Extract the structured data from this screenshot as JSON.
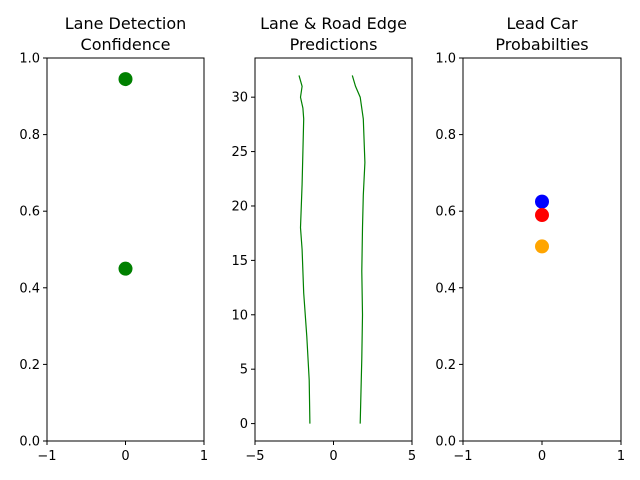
{
  "chart_data": [
    {
      "type": "scatter",
      "title": [
        "Lane Detection",
        "Confidence"
      ],
      "xlim": [
        -1,
        1
      ],
      "ylim": [
        0,
        1
      ],
      "xticks": [
        "−1",
        "0",
        "1"
      ],
      "yticks": [
        "0.0",
        "0.2",
        "0.4",
        "0.6",
        "0.8",
        "1.0"
      ],
      "points": [
        {
          "x": 0,
          "y": 0.945,
          "color": "#008000"
        },
        {
          "x": 0,
          "y": 0.45,
          "color": "#008000"
        }
      ]
    },
    {
      "type": "line",
      "title": [
        "Lane & Road Edge",
        "Predictions"
      ],
      "xlim": [
        -5,
        5
      ],
      "ylim": [
        -1.6,
        33.6
      ],
      "xticks": [
        "−5",
        "0",
        "5"
      ],
      "yticks": [
        "0",
        "5",
        "10",
        "15",
        "20",
        "25",
        "30"
      ],
      "series": [
        {
          "color": "#008000",
          "x": [
            -1.5,
            -1.55,
            -1.7,
            -1.9,
            -2.0,
            -2.1,
            -2.05,
            -2.0,
            -1.95,
            -1.9,
            -1.95,
            -2.1,
            -2.0,
            -2.2
          ],
          "y": [
            0,
            4,
            8,
            12,
            16,
            18,
            20,
            22,
            25,
            28,
            29,
            30,
            31,
            32
          ]
        },
        {
          "color": "#008000",
          "x": [
            1.7,
            1.75,
            1.8,
            1.85,
            1.8,
            1.85,
            1.9,
            2.0,
            1.9,
            1.7,
            1.4,
            1.2
          ],
          "y": [
            0,
            3,
            6,
            10,
            14,
            18,
            21,
            24,
            28,
            30,
            31,
            32
          ]
        }
      ]
    },
    {
      "type": "scatter",
      "title": [
        "Lead Car",
        "Probabilties"
      ],
      "xlim": [
        -1,
        1
      ],
      "ylim": [
        0,
        1
      ],
      "xticks": [
        "−1",
        "0",
        "1"
      ],
      "yticks": [
        "0.0",
        "0.2",
        "0.4",
        "0.6",
        "0.8",
        "1.0"
      ],
      "points": [
        {
          "x": 0,
          "y": 0.625,
          "color": "#0000ff"
        },
        {
          "x": 0,
          "y": 0.59,
          "color": "#ff0000"
        },
        {
          "x": 0,
          "y": 0.508,
          "color": "#ffa500"
        }
      ]
    }
  ]
}
